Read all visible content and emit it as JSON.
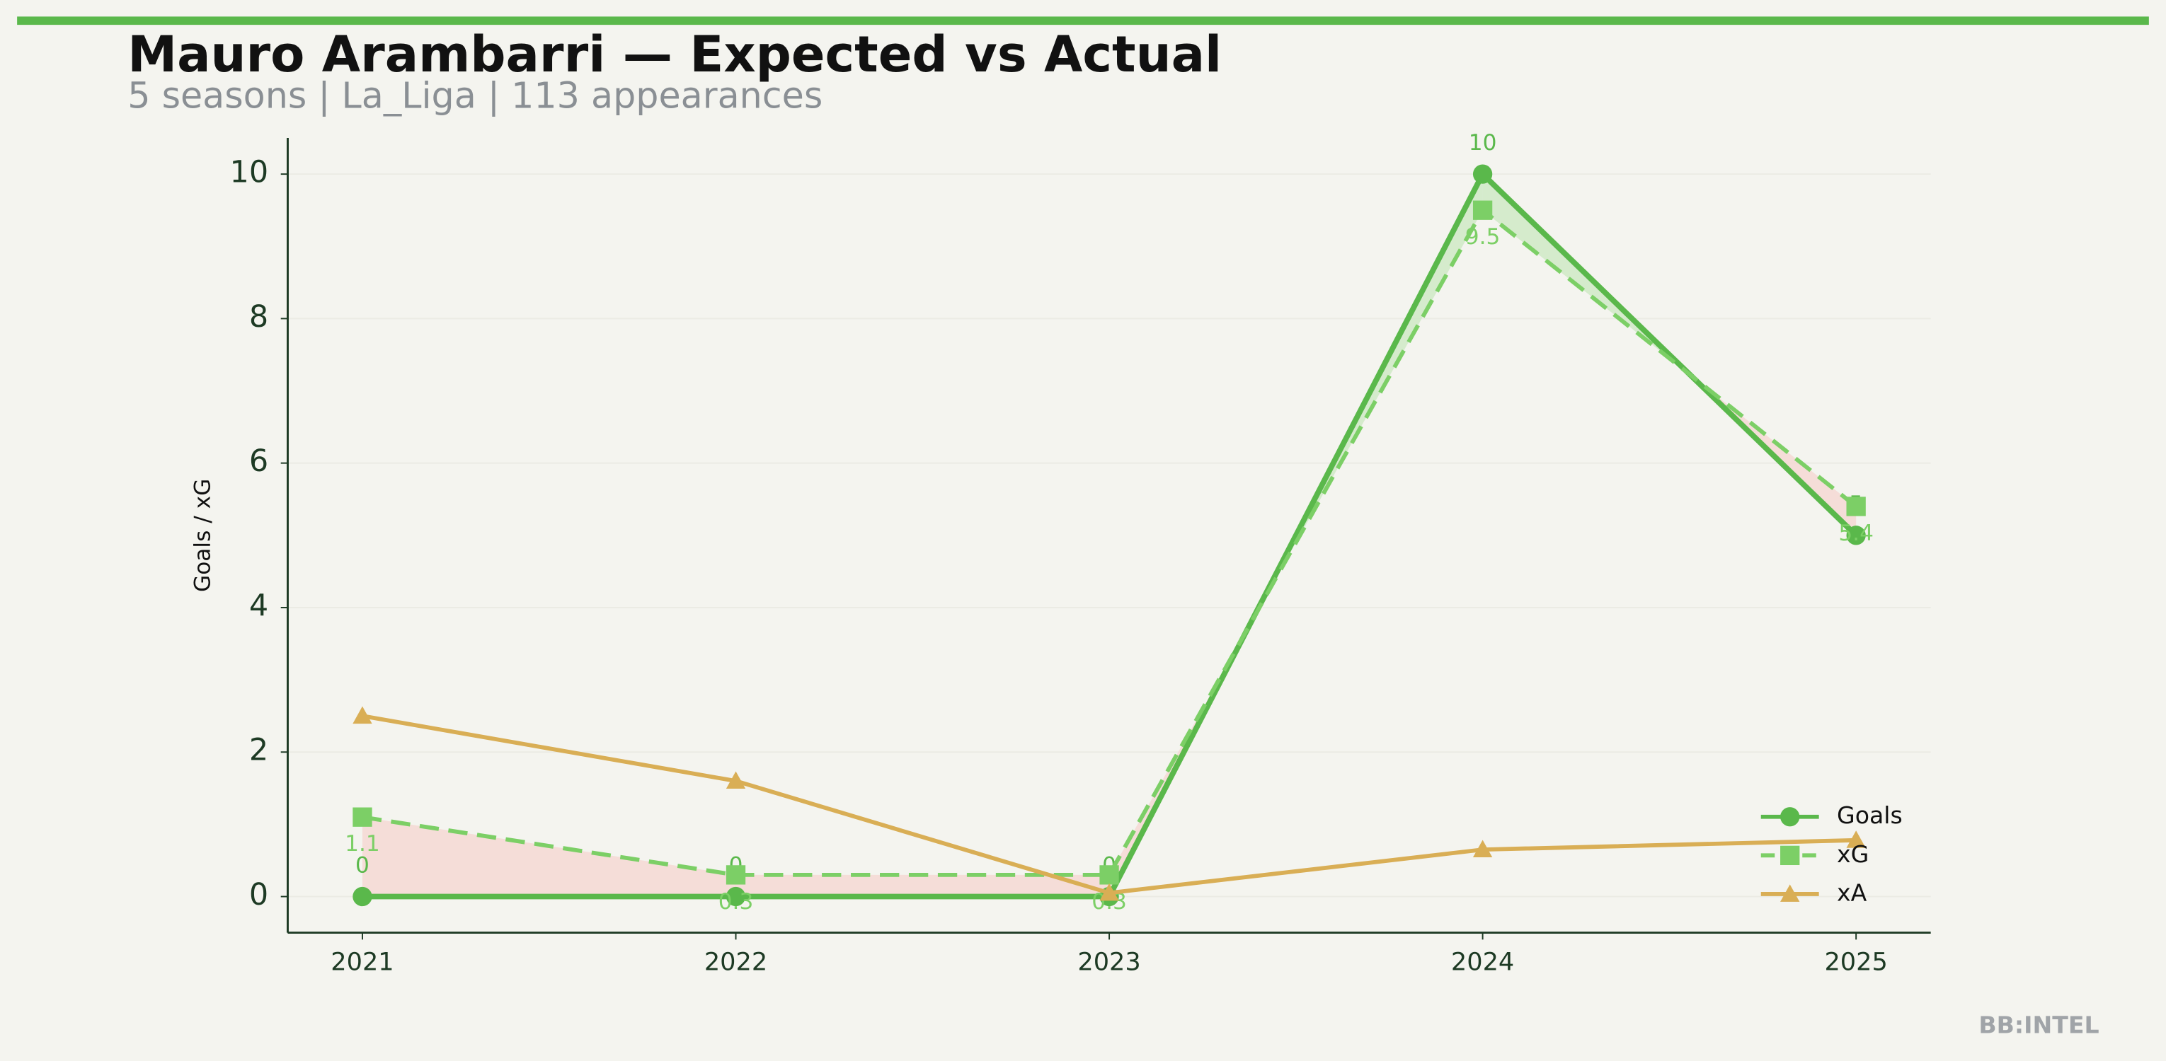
{
  "chart_data": {
    "type": "line",
    "title": "Mauro Arambarri — Expected vs Actual",
    "subtitle": "5 seasons | La_Liga | 113 appearances",
    "ylabel": "Goals / xG",
    "watermark": "BB:INTEL",
    "x": [
      2021,
      2022,
      2023,
      2024,
      2025
    ],
    "xlim": [
      2020.8,
      2025.2
    ],
    "xticks": [
      2021,
      2022,
      2023,
      2024,
      2025
    ],
    "ylim": [
      -0.5,
      10.5
    ],
    "yticks": [
      0,
      2,
      4,
      6,
      8,
      10
    ],
    "legend": "lower right",
    "series": [
      {
        "name": "Goals",
        "color": "#5ab84b",
        "marker": "circle",
        "dash": false,
        "labels": "above",
        "values": [
          0,
          0,
          0,
          10,
          5
        ]
      },
      {
        "name": "xG",
        "color": "#7ccf66",
        "marker": "square",
        "dash": true,
        "labels": "below",
        "values": [
          1.1,
          0.3,
          0.3,
          9.5,
          5.4
        ]
      },
      {
        "name": "xA",
        "color": "#d9ae55",
        "marker": "triangle",
        "dash": false,
        "values": [
          2.5,
          1.6,
          0.05,
          0.65,
          0.78
        ]
      }
    ]
  }
}
